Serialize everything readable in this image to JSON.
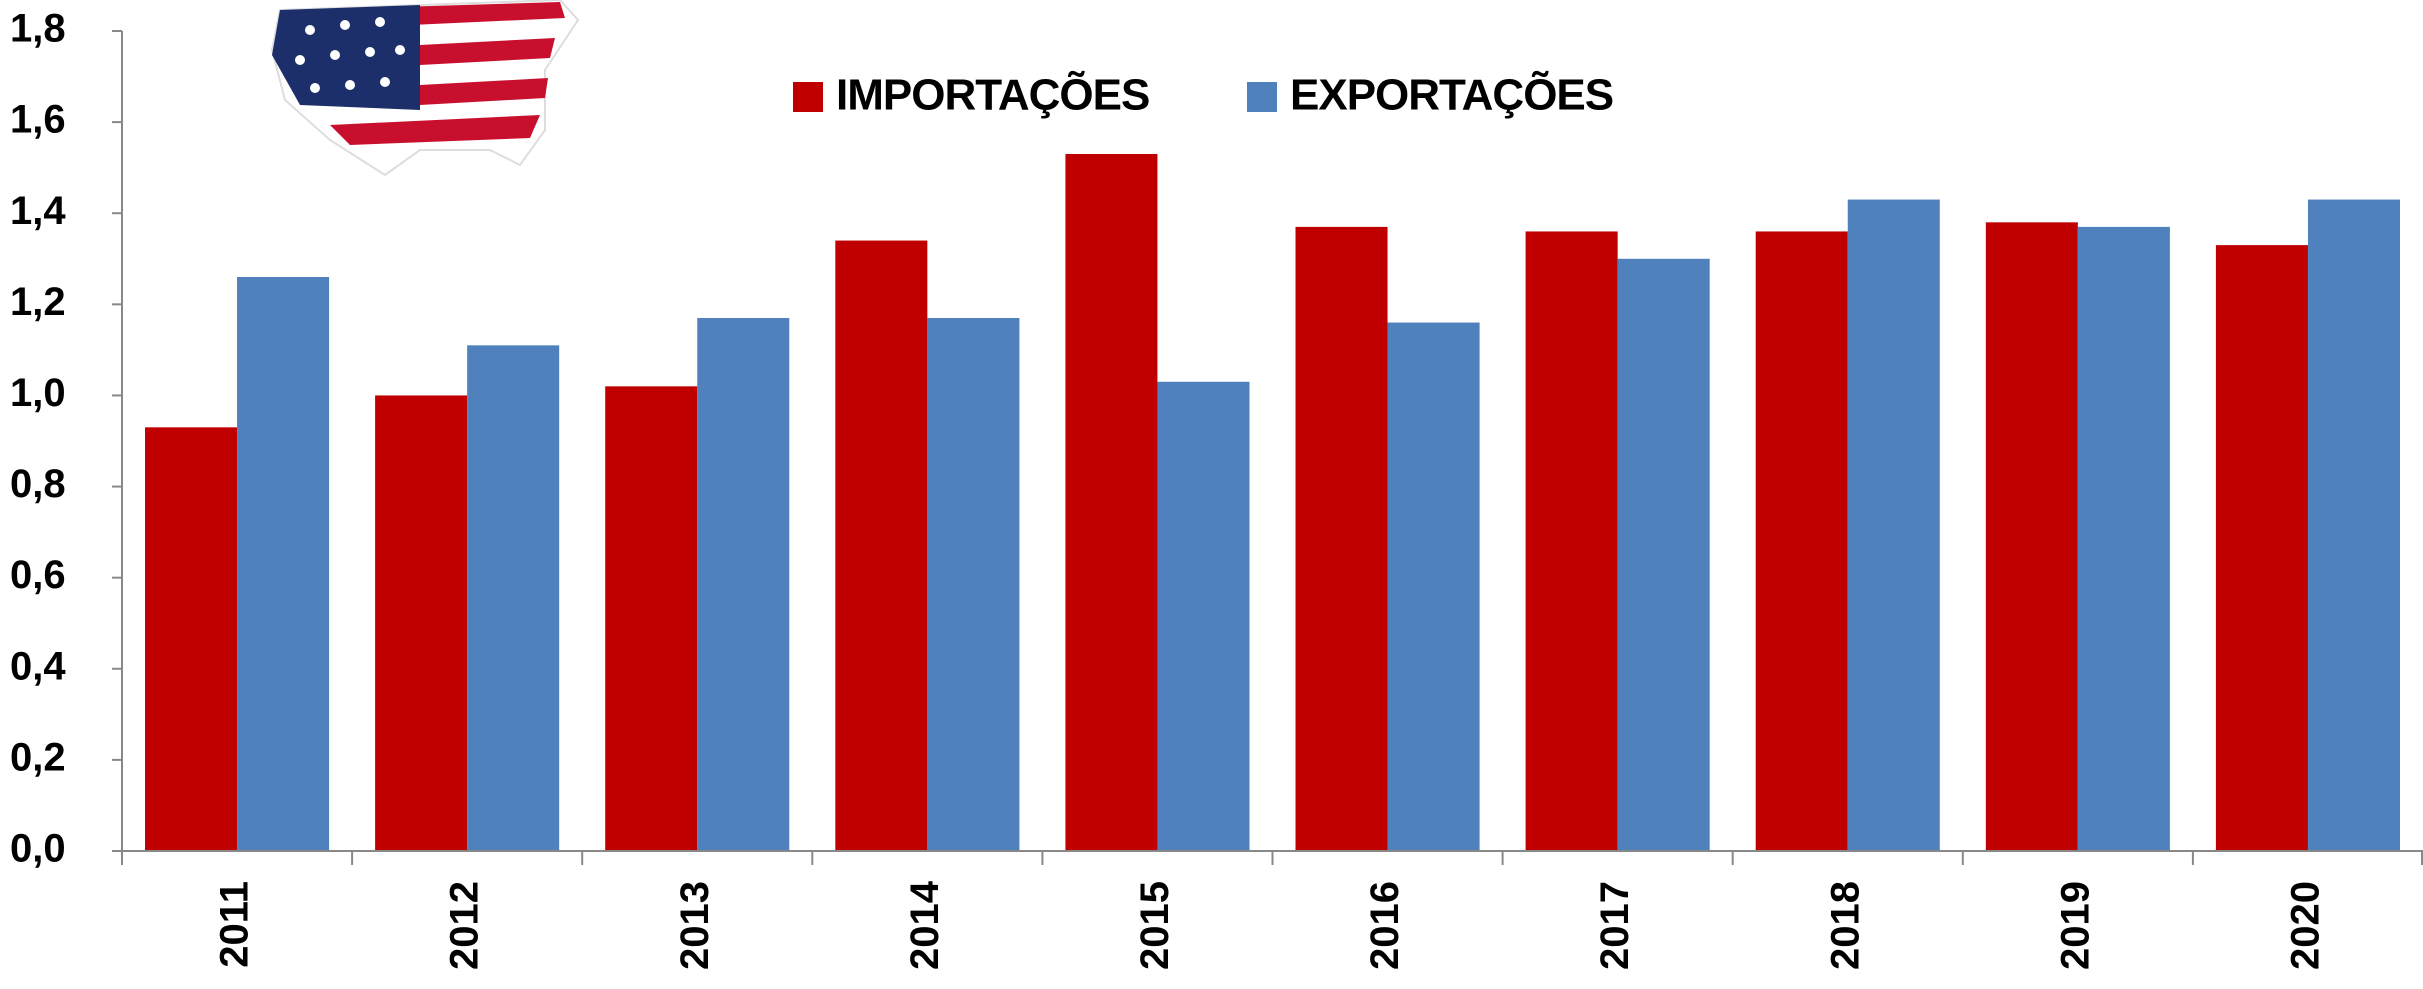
{
  "chart_data": {
    "type": "bar",
    "categories": [
      "2011",
      "2012",
      "2013",
      "2014",
      "2015",
      "2016",
      "2017",
      "2018",
      "2019",
      "2020"
    ],
    "series": [
      {
        "name": "IMPORTAÇÕES",
        "color": "#c00000",
        "values": [
          0.93,
          1.0,
          1.02,
          1.34,
          1.53,
          1.37,
          1.36,
          1.36,
          1.38,
          1.33
        ]
      },
      {
        "name": "EXPORTAÇÕES",
        "color": "#4f81bd",
        "values": [
          1.26,
          1.11,
          1.17,
          1.17,
          1.03,
          1.16,
          1.3,
          1.43,
          1.37,
          1.43
        ]
      }
    ],
    "ylim": [
      0,
      1.8
    ],
    "yticks": [
      {
        "value": 0,
        "label": "0,0"
      },
      {
        "value": 0.2,
        "label": "0,2"
      },
      {
        "value": 0.4,
        "label": "0,4"
      },
      {
        "value": 0.6,
        "label": "0,6"
      },
      {
        "value": 0.8,
        "label": "0,8"
      },
      {
        "value": 1.0,
        "label": "1,0"
      },
      {
        "value": 1.2,
        "label": "1,2"
      },
      {
        "value": 1.4,
        "label": "1,4"
      },
      {
        "value": 1.6,
        "label": "1,6"
      },
      {
        "value": 1.8,
        "label": "1,8"
      }
    ]
  }
}
